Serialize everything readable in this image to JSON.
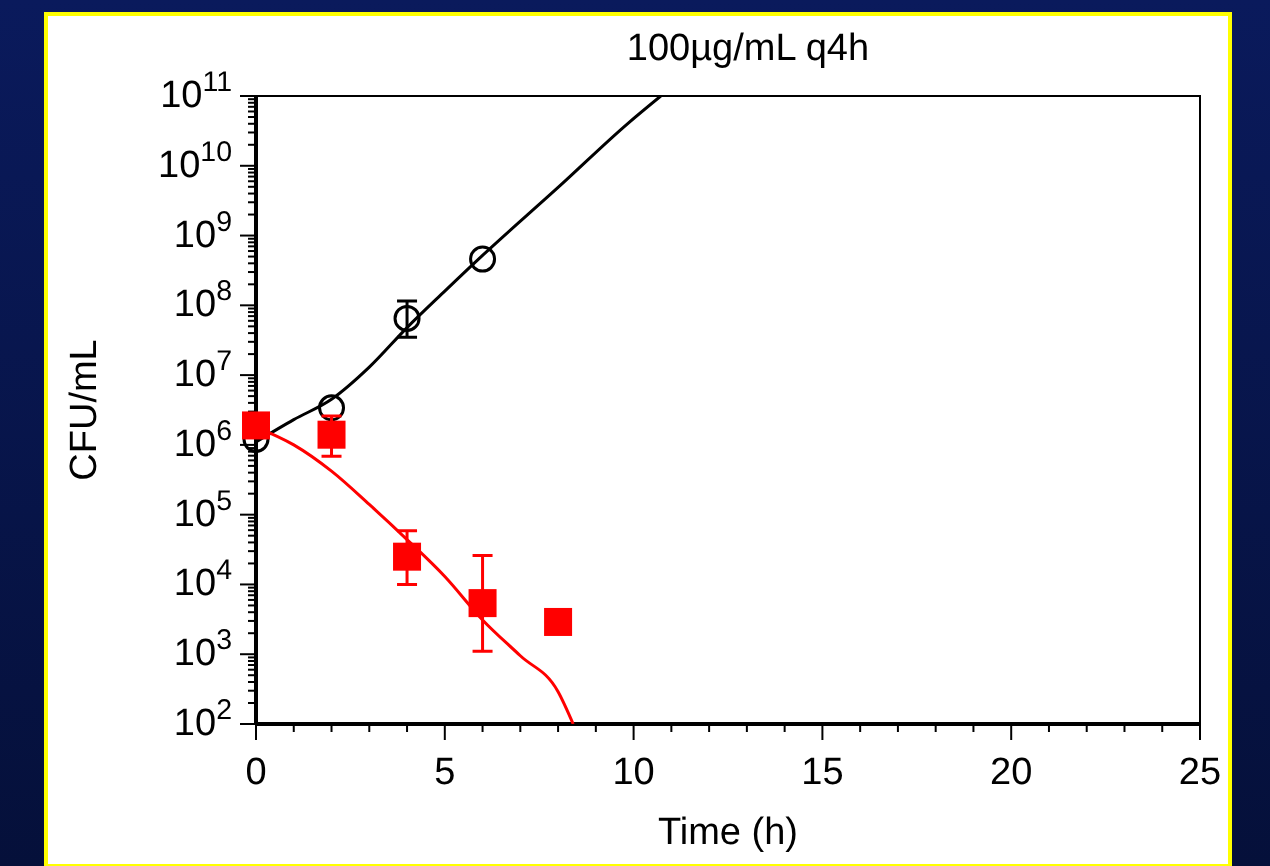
{
  "chart_data": {
    "type": "scatter",
    "title": "100µg/mL q4h",
    "xlabel": "Time (h)",
    "ylabel": "CFU/mL",
    "log": "y",
    "grid": false,
    "xlim": [
      0,
      25
    ],
    "xticks": [
      0,
      5,
      10,
      15,
      20,
      25
    ],
    "ylim": [
      100,
      100000000000
    ],
    "yticks": [
      {
        "value": 100,
        "label": "10$^{2}$"
      },
      {
        "value": 1000,
        "label": "10$^{3}$"
      },
      {
        "value": 10000,
        "label": "10$^{4}$"
      },
      {
        "value": 100000,
        "label": "10$^{5}$"
      },
      {
        "value": 1000000,
        "label": "10$^{6}$"
      },
      {
        "value": 10000000,
        "label": "10$^{7}$"
      },
      {
        "value": 100000000,
        "label": "10$^{8}$"
      },
      {
        "value": 1000000000,
        "label": "10$^{9}$"
      },
      {
        "value": 10000000000,
        "label": "10$^{10}$"
      },
      {
        "value": 100000000000,
        "label": "10$^{11}$"
      }
    ],
    "series": [
      {
        "type": "line",
        "color": "#000000",
        "marker": "none",
        "line_style": "solid",
        "x": [
          0,
          1,
          2,
          3,
          4,
          5,
          6,
          8,
          9.86,
          10.72
        ],
        "values": [
          1100000,
          2300000,
          4500000,
          13000000,
          48000000,
          160000000,
          520000000,
          4900000000,
          41000000000,
          100000000000
        ]
      },
      {
        "type": "line",
        "color": "#ff0000",
        "marker": "none",
        "line_style": "solid",
        "x": [
          0,
          1,
          2,
          3,
          4,
          5,
          6,
          7,
          8,
          8.4
        ],
        "values": [
          1800000,
          1000000,
          420000,
          140000,
          44000,
          13000,
          3100,
          950,
          290,
          100
        ]
      },
      {
        "type": "scatter",
        "color": "#000000",
        "marker": "circle",
        "x": [
          0,
          2,
          4,
          6
        ],
        "values": [
          1200000,
          3400000,
          65000000,
          460000000
        ],
        "errors": [
          null,
          null,
          [
            35000000,
            115000000
          ],
          null
        ]
      },
      {
        "type": "scatter",
        "color": "#ff0000",
        "marker": "square",
        "x": [
          0,
          2,
          4,
          6,
          8
        ],
        "values": [
          1900000,
          1400000,
          25000,
          5400,
          2900
        ],
        "errors": [
          null,
          [
            690000,
            2600000
          ],
          [
            10000,
            59000
          ],
          [
            1100,
            26000
          ],
          null
        ]
      }
    ]
  }
}
